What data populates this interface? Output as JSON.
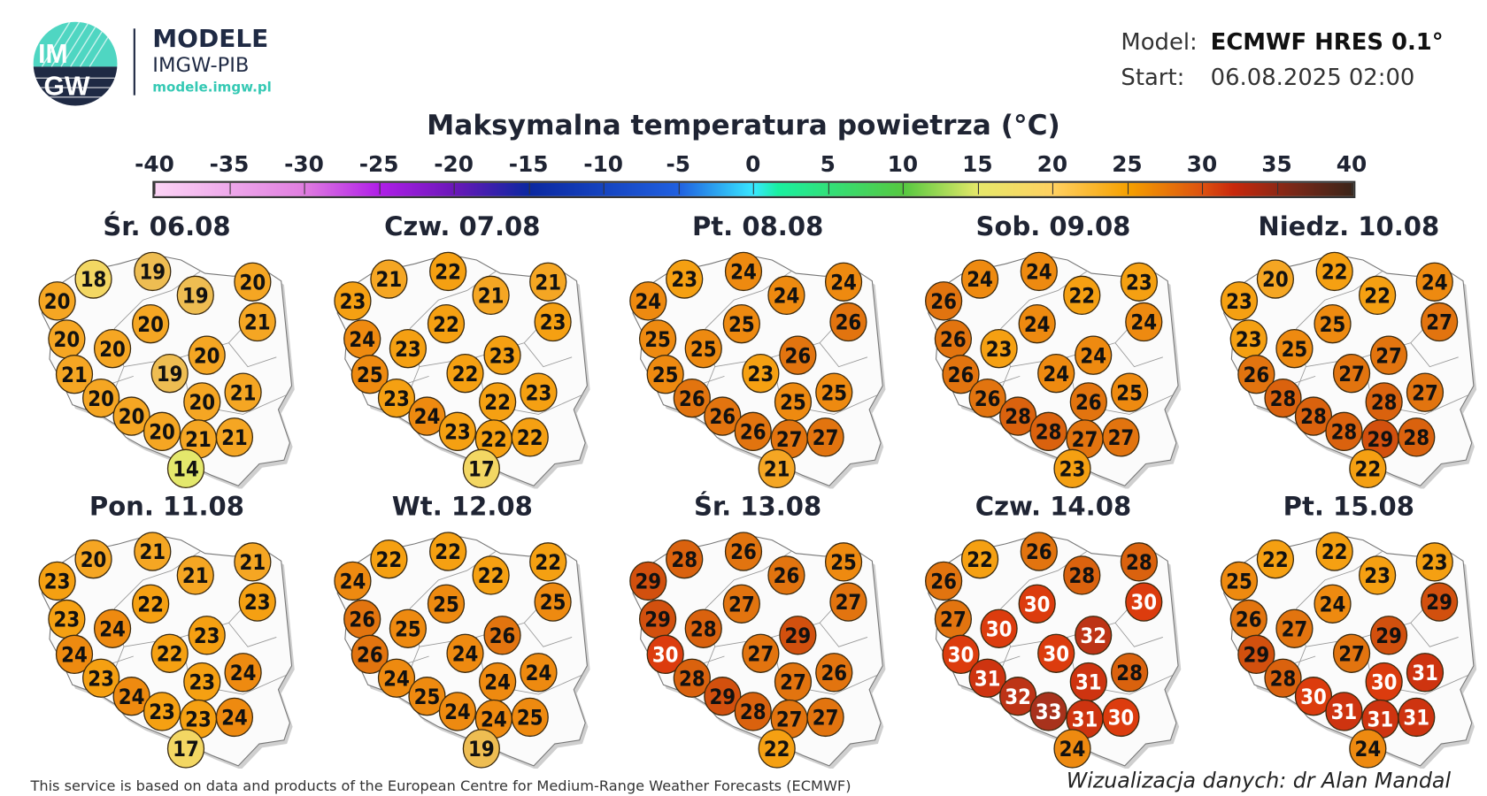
{
  "brand": {
    "title": "MODELE",
    "subtitle": "IMGW-PIB",
    "url": "modele.imgw.pl",
    "logo_text": "IMGW",
    "accent": "#35c9b4",
    "navy": "#1f2a44"
  },
  "meta": {
    "model_label": "Model:",
    "model_value": "ECMWF HRES 0.1°",
    "start_label": "Start:",
    "start_value": "06.08.2025 02:00"
  },
  "chart_data": {
    "type": "map-station-values",
    "title": "Maksymalna temperatura powietrza (°C)",
    "colorbar": {
      "ticks": [
        "-40",
        "-35",
        "-30",
        "-25",
        "-20",
        "-15",
        "-10",
        "-5",
        "0",
        "5",
        "10",
        "15",
        "20",
        "25",
        "30",
        "35",
        "40"
      ],
      "range": [
        -40,
        40
      ]
    },
    "days": [
      {
        "label": "Śr. 06.08",
        "values": [
          20,
          18,
          19,
          19,
          20,
          21,
          20,
          20,
          20,
          20,
          21,
          19,
          20,
          20,
          21,
          20,
          20,
          21,
          21,
          14
        ]
      },
      {
        "label": "Czw. 07.08",
        "values": [
          23,
          21,
          22,
          21,
          21,
          23,
          24,
          23,
          22,
          23,
          25,
          22,
          23,
          22,
          23,
          24,
          23,
          22,
          22,
          17
        ]
      },
      {
        "label": "Pt. 08.08",
        "values": [
          24,
          23,
          24,
          24,
          24,
          26,
          25,
          25,
          25,
          26,
          25,
          23,
          26,
          25,
          25,
          26,
          26,
          27,
          27,
          21
        ]
      },
      {
        "label": "Sob. 09.08",
        "values": [
          26,
          24,
          24,
          22,
          23,
          24,
          26,
          23,
          24,
          24,
          26,
          24,
          26,
          26,
          25,
          28,
          28,
          27,
          27,
          23
        ]
      },
      {
        "label": "Niedz. 10.08",
        "values": [
          23,
          20,
          22,
          22,
          24,
          27,
          23,
          25,
          25,
          27,
          26,
          27,
          28,
          28,
          27,
          28,
          28,
          29,
          28,
          22
        ]
      },
      {
        "label": "Pon. 11.08",
        "values": [
          23,
          20,
          21,
          21,
          21,
          23,
          23,
          24,
          22,
          23,
          24,
          22,
          23,
          23,
          24,
          24,
          23,
          23,
          24,
          17
        ]
      },
      {
        "label": "Wt. 12.08",
        "values": [
          24,
          22,
          22,
          22,
          22,
          25,
          26,
          25,
          25,
          26,
          26,
          24,
          24,
          24,
          24,
          25,
          24,
          24,
          25,
          19
        ]
      },
      {
        "label": "Śr. 13.08",
        "values": [
          29,
          28,
          26,
          26,
          25,
          27,
          29,
          28,
          27,
          29,
          30,
          27,
          28,
          27,
          26,
          29,
          28,
          27,
          27,
          22
        ]
      },
      {
        "label": "Czw. 14.08",
        "values": [
          26,
          22,
          26,
          28,
          28,
          30,
          27,
          30,
          30,
          32,
          30,
          30,
          31,
          31,
          28,
          32,
          33,
          31,
          30,
          24
        ]
      },
      {
        "label": "Pt. 15.08",
        "values": [
          25,
          22,
          22,
          23,
          23,
          29,
          26,
          27,
          24,
          29,
          29,
          27,
          28,
          30,
          31,
          30,
          31,
          31,
          31,
          24
        ]
      }
    ]
  },
  "footer": {
    "left": "This service is based on data and products of the European Centre for Medium-Range Weather Forecasts (ECMWF)",
    "right": "Wizualizacja danych: dr Alan Mandal"
  }
}
